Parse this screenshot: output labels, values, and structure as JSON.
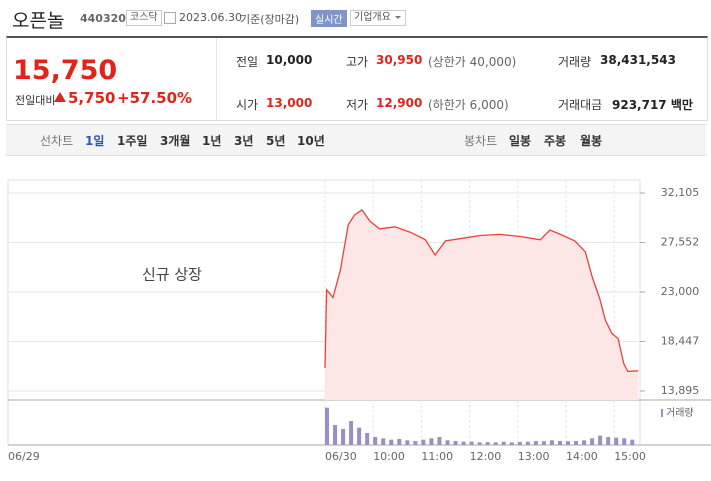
{
  "header": {
    "name": "오픈놀",
    "code": "440320",
    "market": "코스닥",
    "date": "2023.06.30",
    "basis": "기준(장마감)",
    "realtime": "실시간",
    "company_info": "기업개요"
  },
  "quote": {
    "price": "15,750",
    "change_label": "전일대비",
    "change": "5,750",
    "change_rate": "+57.50%",
    "stats": [
      {
        "label": "전일",
        "value": "10,000"
      },
      {
        "label": "고가",
        "value": "30,950",
        "note": "(상한가 40,000)"
      },
      {
        "label": "거래량",
        "value": "38,431,543"
      },
      {
        "label": "시가",
        "value": "13,000"
      },
      {
        "label": "저가",
        "value": "12,900",
        "note": "(하한가 6,000)"
      },
      {
        "label": "거래대금",
        "value": "923,717 백만"
      }
    ]
  },
  "tabs": {
    "line_label": "선차트",
    "line_periods": [
      "1일",
      "1주일",
      "3개월",
      "1년",
      "3년",
      "5년",
      "10년"
    ],
    "candle_label": "봉차트",
    "candle_periods": [
      "일봉",
      "주봉",
      "월봉"
    ]
  },
  "chart_data": [
    {
      "type": "line",
      "annotation": "신규 상장",
      "color": "#e8423a",
      "fill": "#fde6e6",
      "x": [
        "09:00",
        "09:02",
        "09:10",
        "09:19",
        "09:29",
        "09:37",
        "09:46",
        "09:56",
        "10:08",
        "10:27",
        "10:46",
        "11:05",
        "11:17",
        "11:30",
        "11:48",
        "12:13",
        "12:38",
        "13:03",
        "13:28",
        "13:40",
        "13:53",
        "14:11",
        "14:24",
        "14:33",
        "14:42",
        "14:49",
        "14:57",
        "15:05",
        "15:12",
        "15:17",
        "15:30"
      ],
      "values": [
        16010,
        23200,
        22500,
        25000,
        29200,
        30100,
        30550,
        29500,
        28800,
        29000,
        28500,
        27800,
        26400,
        27700,
        27900,
        28200,
        28300,
        28100,
        27800,
        28700,
        28300,
        27700,
        26700,
        24300,
        22400,
        20400,
        19200,
        18700,
        16400,
        15700,
        15750
      ],
      "ylim": [
        13067,
        33301
      ],
      "yticks": [
        {
          "value": 32105,
          "label": "32,105"
        },
        {
          "value": 27552,
          "label": "27,552"
        },
        {
          "value": 23000,
          "label": "23,000"
        },
        {
          "value": 18447,
          "label": "18,447"
        },
        {
          "value": 13895,
          "label": "13,895"
        }
      ],
      "xticks": [
        "06/29",
        "06/30",
        "10:00",
        "11:00",
        "12:00",
        "13:00",
        "14:00",
        "15:00"
      ],
      "grid": true
    },
    {
      "type": "bar",
      "series": [
        {
          "name": "거래량",
          "color": "#9b8ec5",
          "values": [
            2800000,
            1500000,
            1200000,
            1800000,
            1300000,
            900000,
            600000,
            500000,
            400000,
            450000,
            350000,
            300000,
            400000,
            500000,
            600000,
            350000,
            300000,
            250000,
            250000,
            200000,
            220000,
            200000,
            250000,
            200000,
            230000,
            250000,
            300000,
            280000,
            350000,
            300000,
            280000,
            300000,
            350000,
            500000,
            700000,
            600000,
            550000,
            500000,
            400000
          ]
        }
      ],
      "x": [
        "09:00",
        "09:10",
        "09:20",
        "09:30",
        "09:40",
        "09:50",
        "10:00",
        "10:10",
        "10:20",
        "10:30",
        "10:40",
        "10:50",
        "11:00",
        "11:10",
        "11:20",
        "11:30",
        "11:40",
        "11:50",
        "12:00",
        "12:10",
        "12:20",
        "12:30",
        "12:40",
        "12:50",
        "13:00",
        "13:10",
        "13:20",
        "13:30",
        "13:40",
        "13:50",
        "14:00",
        "14:10",
        "14:20",
        "14:30",
        "14:40",
        "14:50",
        "15:00",
        "15:10",
        "15:20"
      ],
      "ylim": [
        0,
        3000000
      ]
    }
  ]
}
